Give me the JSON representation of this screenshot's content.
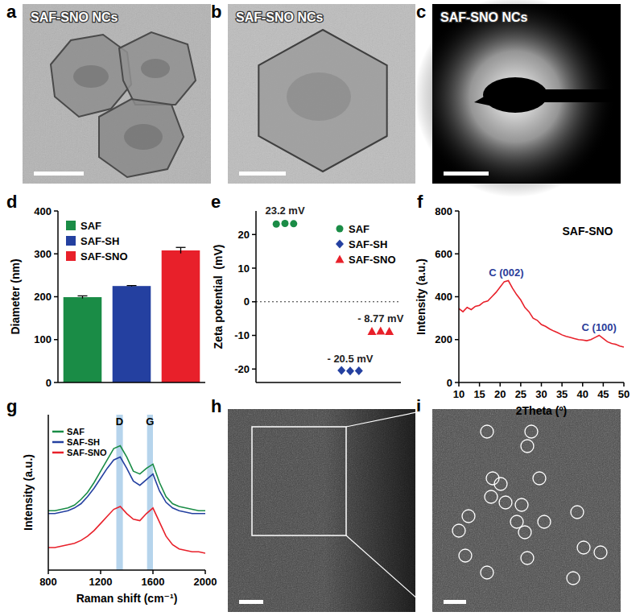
{
  "images": [
    {
      "panel": "a",
      "label": "SAF-SNO NCs"
    },
    {
      "panel": "b",
      "label": "SAF-SNO NCs"
    },
    {
      "panel": "c",
      "label": "SAF-SNO NCs"
    },
    {
      "panel": "h"
    },
    {
      "panel": "i"
    }
  ],
  "chart_data": [
    {
      "panel": "d",
      "type": "bar",
      "categories": [
        "SAF",
        "SAF-SH",
        "SAF-SNO"
      ],
      "values": [
        199,
        225,
        308
      ],
      "errors": [
        3,
        1,
        7
      ],
      "colors": [
        "#1a8c46",
        "#2440a0",
        "#e8202a"
      ],
      "y_label": "Diameter (nm)",
      "ylim": [
        0,
        400
      ],
      "yticks": [
        0,
        100,
        200,
        300,
        400
      ],
      "legend": "upper left",
      "tick_labels": "y"
    },
    {
      "panel": "e",
      "type": "scatter",
      "y_label": "Zeta potential  (mV)",
      "xlim": [
        0,
        10
      ],
      "ylim": [
        -24,
        27
      ],
      "yticks": [
        -20,
        -10,
        0,
        10,
        20
      ],
      "tick_labels": "y",
      "legend": "upper right",
      "reference_line": {
        "value": 0,
        "line_style": "dotted"
      },
      "series": [
        {
          "name": "SAF",
          "color": "#1a8c46",
          "marker": "circle",
          "x": [
            1.4,
            2.0,
            2.6
          ],
          "values": [
            23.1,
            23.3,
            23.2
          ],
          "label": "23.2 mV"
        },
        {
          "name": "SAF-SH",
          "color": "#2440a0",
          "marker": "diamond",
          "x": [
            5.9,
            6.5,
            7.1
          ],
          "values": [
            -20.4,
            -20.6,
            -20.5
          ],
          "label": "- 20.5 mV"
        },
        {
          "name": "SAF-SNO",
          "color": "#e8202a",
          "marker": "triangle",
          "x": [
            8.0,
            8.6,
            9.2
          ],
          "values": [
            -8.8,
            -8.7,
            -8.8
          ],
          "label": "- 8.77 mV"
        }
      ]
    },
    {
      "panel": "f",
      "type": "line",
      "title": "SAF-SNO",
      "x_label": "2Theta (º)",
      "y_label": "Intensity (a.u.)",
      "color": "#e8202a",
      "x": [
        10,
        11,
        12,
        13,
        14,
        15,
        16,
        17,
        18,
        19,
        20,
        21,
        22,
        23,
        24,
        25,
        26,
        27,
        28,
        29,
        30,
        31,
        32,
        33,
        34,
        35,
        36,
        37,
        38,
        39,
        40,
        41,
        42,
        43,
        44,
        45,
        46,
        47,
        48,
        49,
        50
      ],
      "values": [
        345,
        330,
        350,
        340,
        355,
        360,
        375,
        380,
        400,
        420,
        445,
        470,
        475,
        440,
        410,
        385,
        350,
        330,
        300,
        290,
        270,
        262,
        250,
        240,
        232,
        222,
        215,
        210,
        205,
        200,
        198,
        195,
        200,
        210,
        220,
        205,
        190,
        182,
        178,
        170,
        165
      ],
      "xlim": [
        10,
        50
      ],
      "xticks": [
        10,
        15,
        20,
        25,
        30,
        35,
        40,
        45,
        50
      ],
      "ylim": [
        0,
        800
      ],
      "yticks": [
        0,
        200,
        400,
        600,
        800
      ],
      "annotations": [
        {
          "text": "C (002)",
          "x": 21.5,
          "y": 495
        },
        {
          "text": "C (100)",
          "x": 44,
          "y": 240
        }
      ]
    },
    {
      "panel": "g",
      "type": "line",
      "x_label": "Raman shift (cm⁻¹)",
      "y_label": "Intensity (a.u.)",
      "x": [
        800,
        850,
        900,
        950,
        1000,
        1050,
        1100,
        1150,
        1200,
        1250,
        1300,
        1350,
        1400,
        1450,
        1500,
        1550,
        1600,
        1650,
        1700,
        1750,
        1800,
        1850,
        1900,
        1950,
        2000
      ],
      "xlim": [
        800,
        2000
      ],
      "xticks": [
        800,
        1200,
        1600,
        2000
      ],
      "ylim": [
        0,
        110
      ],
      "tick_labels": "x",
      "legend": "upper left",
      "bands": [
        {
          "label": "D",
          "range": [
            1320,
            1370
          ]
        },
        {
          "label": "G",
          "range": [
            1555,
            1600
          ]
        }
      ],
      "series": [
        {
          "name": "SAF",
          "color": "#1a8c46",
          "values": [
            42,
            42,
            43,
            44,
            46,
            50,
            55,
            62,
            70,
            78,
            86,
            88,
            80,
            70,
            68,
            72,
            75,
            62,
            52,
            47,
            45,
            44,
            43,
            42,
            42
          ]
        },
        {
          "name": "SAF-SH",
          "color": "#2440a0",
          "values": [
            40,
            40,
            41,
            42,
            44,
            47,
            52,
            58,
            65,
            72,
            78,
            80,
            72,
            63,
            60,
            64,
            68,
            56,
            48,
            44,
            42,
            41,
            40,
            40,
            40
          ]
        },
        {
          "name": "SAF-SNO",
          "color": "#e8202a",
          "values": [
            16,
            16,
            17,
            18,
            19,
            21,
            24,
            28,
            33,
            38,
            43,
            45,
            40,
            36,
            35,
            40,
            44,
            34,
            24,
            18,
            15,
            14,
            13,
            13,
            12
          ]
        }
      ]
    }
  ]
}
